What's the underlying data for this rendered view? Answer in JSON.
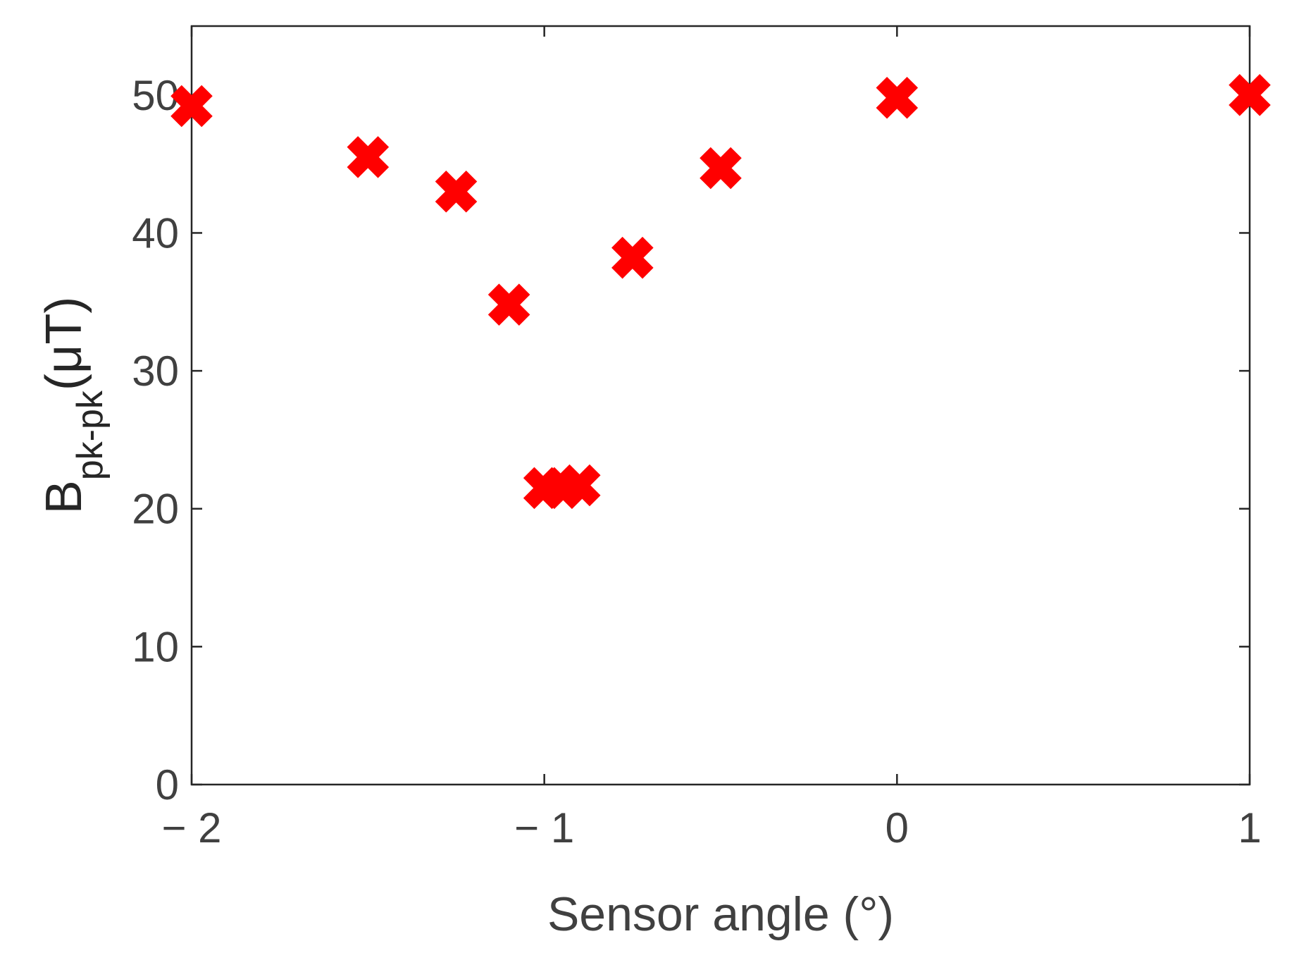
{
  "chart_data": {
    "type": "scatter",
    "xlabel": "Sensor angle (°)",
    "ylabel": {
      "main": "B",
      "subscript": "pk-pk",
      "unit": "(μT)"
    },
    "xlim": [
      -2,
      1
    ],
    "ylim": [
      0,
      55
    ],
    "x_ticks": [
      -2,
      -1,
      0,
      1
    ],
    "x_tick_labels": [
      "− 2",
      "− 1",
      "0",
      "1"
    ],
    "y_ticks": [
      0,
      10,
      20,
      30,
      40,
      50
    ],
    "y_tick_labels": [
      "0",
      "10",
      "20",
      "30",
      "40",
      "50"
    ],
    "grid": false,
    "marker": "x",
    "marker_color": "#ff0000",
    "series": [
      {
        "points": [
          {
            "x": -2.0,
            "y": 49.2
          },
          {
            "x": -1.5,
            "y": 45.5
          },
          {
            "x": -1.25,
            "y": 43.0
          },
          {
            "x": -1.1,
            "y": 34.8
          },
          {
            "x": -1.0,
            "y": 21.5
          },
          {
            "x": -0.95,
            "y": 21.5
          },
          {
            "x": -0.9,
            "y": 21.7
          },
          {
            "x": -0.75,
            "y": 38.2
          },
          {
            "x": -0.5,
            "y": 44.7
          },
          {
            "x": 0.0,
            "y": 49.8
          },
          {
            "x": 1.0,
            "y": 50.0
          }
        ]
      }
    ]
  }
}
